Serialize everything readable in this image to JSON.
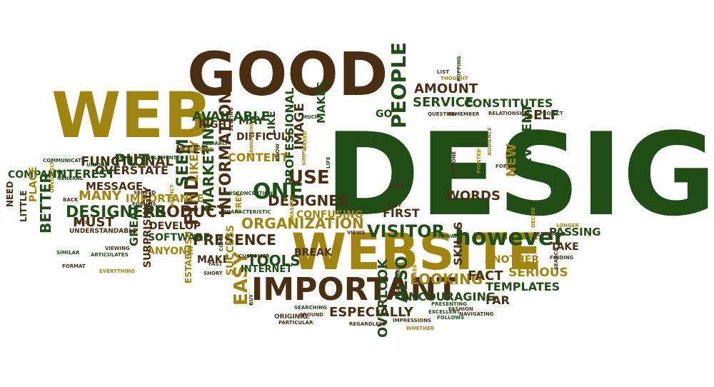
{
  "palette": {
    "dark_green": "#1f4d15",
    "brown": "#4a2e12",
    "olive": "#a08410"
  },
  "words": [
    {
      "text": "DESIGN",
      "color": "dark_green"
    },
    {
      "text": "GOOD",
      "color": "brown"
    },
    {
      "text": "WEB",
      "color": "olive"
    },
    {
      "text": "WEBSITE",
      "color": "olive"
    },
    {
      "text": "IMPORTANT",
      "color": "brown"
    },
    {
      "text": "however",
      "color": "dark_green"
    },
    {
      "text": "DESIGNER",
      "color": "brown"
    },
    {
      "text": "ORGANIZATION",
      "color": "olive"
    },
    {
      "text": "VISITOR",
      "color": "dark_green"
    },
    {
      "text": "PRESENCE",
      "color": "brown"
    },
    {
      "text": "LOOKING",
      "color": "olive"
    },
    {
      "text": "ENCOURAGING",
      "color": "dark_green"
    },
    {
      "text": "ANOTHER",
      "color": "olive"
    },
    {
      "text": "FACT",
      "color": "brown"
    },
    {
      "text": "ALSO",
      "color": "dark_green"
    },
    {
      "text": "TOOLS",
      "color": "dark_green"
    },
    {
      "text": "BREAK",
      "color": "brown"
    },
    {
      "text": "EASY",
      "color": "olive"
    },
    {
      "text": "MARKETING",
      "color": "dark_green"
    },
    {
      "text": "INFORMATION",
      "color": "brown"
    },
    {
      "text": "FIND",
      "color": "brown"
    },
    {
      "text": "ONE",
      "color": "dark_green"
    },
    {
      "text": "USE",
      "color": "brown"
    },
    {
      "text": "PROFESSIONAL",
      "color": "dark_green"
    },
    {
      "text": "IMAGE",
      "color": "brown"
    },
    {
      "text": "LIKE",
      "color": "dark_green"
    },
    {
      "text": "DIFFICULT",
      "color": "brown"
    },
    {
      "text": "MAY",
      "color": "dark_green"
    },
    {
      "text": "AVAILABLE",
      "color": "dark_green"
    },
    {
      "text": "CONTENT",
      "color": "olive"
    },
    {
      "text": "SEEM",
      "color": "dark_green"
    },
    {
      "text": "LIKELY",
      "color": "olive"
    },
    {
      "text": "UTER",
      "color": "brown"
    },
    {
      "text": "RIGHT",
      "color": "brown"
    },
    {
      "text": "PEOPLE",
      "color": "dark_green"
    },
    {
      "text": "AMOUNT",
      "color": "brown"
    },
    {
      "text": "SERVICE",
      "color": "dark_green"
    },
    {
      "text": "CONSTITUTES",
      "color": "dark_green"
    },
    {
      "text": "GO",
      "color": "dark_green"
    },
    {
      "text": "SELF",
      "color": "brown"
    },
    {
      "text": "NEW",
      "color": "olive"
    },
    {
      "text": "EVIDENT",
      "color": "dark_green"
    },
    {
      "text": "WORDS",
      "color": "brown"
    },
    {
      "text": "FIRST",
      "color": "brown"
    },
    {
      "text": "PASSING",
      "color": "dark_green"
    },
    {
      "text": "TAKE",
      "color": "brown"
    },
    {
      "text": "SERIOUS",
      "color": "olive"
    },
    {
      "text": "SKILLS",
      "color": "brown"
    },
    {
      "text": "TEMPLATES",
      "color": "dark_green"
    },
    {
      "text": "FAR",
      "color": "brown"
    },
    {
      "text": "ESPECIALLY",
      "color": "brown"
    },
    {
      "text": "OVERLOOK",
      "color": "dark_green"
    },
    {
      "text": "PRODUCT",
      "color": "brown"
    },
    {
      "text": "SOFTWARE",
      "color": "dark_green"
    },
    {
      "text": "DEVELOP",
      "color": "brown"
    },
    {
      "text": "ANYONE",
      "color": "olive"
    },
    {
      "text": "MAKE",
      "color": "brown"
    },
    {
      "text": "SUCCESS",
      "color": "olive"
    },
    {
      "text": "ESTABLISH",
      "color": "olive"
    },
    {
      "text": "INTERNET",
      "color": "dark_green"
    },
    {
      "text": "DESIGNERS",
      "color": "dark_green"
    },
    {
      "text": "MANY",
      "color": "olive"
    },
    {
      "text": "MESSAGE",
      "color": "brown"
    },
    {
      "text": "FUNCTIONAL",
      "color": "brown"
    },
    {
      "text": "OVERSTATE",
      "color": "brown"
    },
    {
      "text": "INTEREST",
      "color": "dark_green"
    },
    {
      "text": "PUT",
      "color": "dark_green"
    },
    {
      "text": "IMPORTANCE",
      "color": "olive"
    },
    {
      "text": "COMPANY",
      "color": "dark_green"
    },
    {
      "text": "BETTER",
      "color": "dark_green"
    },
    {
      "text": "MUST",
      "color": "brown"
    },
    {
      "text": "SURPRISINGLY",
      "color": "brown"
    },
    {
      "text": "GREAT",
      "color": "dark_green"
    },
    {
      "text": "PLACE",
      "color": "olive"
    },
    {
      "text": "LITTLE",
      "color": "brown"
    },
    {
      "text": "NEED",
      "color": "brown"
    },
    {
      "text": "UNDERSTANDABLE",
      "color": "brown"
    },
    {
      "text": "UNIQUE",
      "color": "dark_green"
    },
    {
      "text": "COMMUNICATE",
      "color": "dark_green"
    },
    {
      "text": "GENERAL",
      "color": "dark_green"
    },
    {
      "text": "OBVIOUSLY",
      "color": "olive"
    },
    {
      "text": "BACK",
      "color": "brown"
    },
    {
      "text": "SIMILAR",
      "color": "dark_green"
    },
    {
      "text": "FORMAT",
      "color": "brown"
    },
    {
      "text": "ARTICULATES",
      "color": "dark_green"
    },
    {
      "text": "EVERYTHING",
      "color": "olive"
    },
    {
      "text": "VIEWING",
      "color": "brown"
    },
    {
      "text": "SEES",
      "color": "brown"
    },
    {
      "text": "SERVED",
      "color": "brown"
    },
    {
      "text": "FORUMS",
      "color": "brown"
    },
    {
      "text": "AGENCY",
      "color": "olive"
    },
    {
      "text": "IMPLEMENTED",
      "color": "dark_green"
    },
    {
      "text": "BOOKMARK",
      "color": "olive"
    },
    {
      "text": "RELIABLY",
      "color": "dark_green"
    },
    {
      "text": "SETTING",
      "color": "brown"
    },
    {
      "text": "FREE",
      "color": "olive"
    },
    {
      "text": "MISCONCEPTIONS",
      "color": "dark_green"
    },
    {
      "text": "CHARACTERISTIC",
      "color": "dark_green"
    },
    {
      "text": "PLEASANT",
      "color": "olive"
    },
    {
      "text": "ABANDONING",
      "color": "olive"
    },
    {
      "text": "KNOW",
      "color": "brown"
    },
    {
      "text": "SIMPLY",
      "color": "olive"
    },
    {
      "text": "BASED",
      "color": "olive"
    },
    {
      "text": "MAKES",
      "color": "dark_green"
    },
    {
      "text": "MUCH",
      "color": "dark_green"
    },
    {
      "text": "LIFE",
      "color": "dark_green"
    },
    {
      "text": "CONFUSING",
      "color": "olive"
    },
    {
      "text": "LOOK",
      "color": "brown"
    },
    {
      "text": "JUST",
      "color": "brown"
    },
    {
      "text": "SOMEONE",
      "color": "brown"
    },
    {
      "text": "AUDIENCE",
      "color": "olive"
    },
    {
      "text": "POINTED",
      "color": "olive"
    },
    {
      "text": "FORUM",
      "color": "brown"
    },
    {
      "text": "LIST",
      "color": "brown"
    },
    {
      "text": "THOUGHT",
      "color": "olive"
    },
    {
      "text": "POPPING",
      "color": "dark_green"
    },
    {
      "text": "QUESTION",
      "color": "brown"
    },
    {
      "text": "REMEMBER",
      "color": "brown"
    },
    {
      "text": "RELATIONSHIP",
      "color": "brown"
    },
    {
      "text": "PROJECT",
      "color": "dark_green"
    },
    {
      "text": "DECIDE",
      "color": "olive"
    },
    {
      "text": "LONGER",
      "color": "olive"
    },
    {
      "text": "PERSON",
      "color": "brown"
    },
    {
      "text": "TOWARD",
      "color": "dark_green"
    },
    {
      "text": "VIEWS",
      "color": "brown"
    },
    {
      "text": "FINDING",
      "color": "dark_green"
    },
    {
      "text": "SEARCH",
      "color": "brown"
    },
    {
      "text": "SHORT",
      "color": "brown"
    },
    {
      "text": "CUSTOMER",
      "color": "brown"
    },
    {
      "text": "COME",
      "color": "dark_green"
    },
    {
      "text": "FAST",
      "color": "brown"
    },
    {
      "text": "BUY",
      "color": "brown"
    },
    {
      "text": "ORIGINAL",
      "color": "brown"
    },
    {
      "text": "PARTICULAR",
      "color": "brown"
    },
    {
      "text": "SEARCHING",
      "color": "dark_green"
    },
    {
      "text": "AROUND",
      "color": "brown"
    },
    {
      "text": "REGARDLESS",
      "color": "brown"
    },
    {
      "text": "IMPRESSIONS",
      "color": "brown"
    },
    {
      "text": "WHETHER",
      "color": "olive"
    },
    {
      "text": "APPEAR",
      "color": "brown"
    },
    {
      "text": "TAKES",
      "color": "olive"
    },
    {
      "text": "EXCELLENT",
      "color": "dark_green"
    },
    {
      "text": "PRESENTING",
      "color": "dark_green"
    },
    {
      "text": "FOLLOWS",
      "color": "dark_green"
    },
    {
      "text": "FASHION",
      "color": "brown"
    },
    {
      "text": "NAVIGATING",
      "color": "brown"
    },
    {
      "text": "BRAND",
      "color": "brown"
    }
  ]
}
